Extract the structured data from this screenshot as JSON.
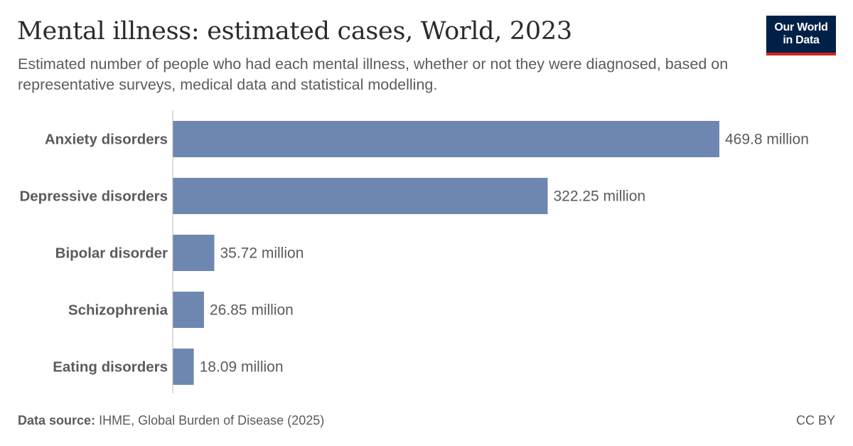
{
  "header": {
    "title": "Mental illness: estimated cases, World, 2023",
    "subtitle": "Estimated number of people who had each mental illness, whether or not they were diagnosed, based on representative surveys, medical data and statistical modelling."
  },
  "logo": {
    "line1": "Our World",
    "line2": "in Data",
    "bg_color": "#002147",
    "accent_color": "#ce261e"
  },
  "footer": {
    "source_label": "Data source:",
    "source_text": "IHME, Global Burden of Disease (2025)",
    "license": "CC BY"
  },
  "chart_data": {
    "type": "bar",
    "orientation": "horizontal",
    "categories": [
      "Anxiety disorders",
      "Depressive disorders",
      "Bipolar disorder",
      "Schizophrenia",
      "Eating disorders"
    ],
    "values": [
      469.8,
      322.25,
      35.72,
      26.85,
      18.09
    ],
    "value_labels": [
      "469.8 million",
      "322.25 million",
      "35.72 million",
      "26.85 million",
      "18.09 million"
    ],
    "bar_color": "#6d87b0",
    "grid": false,
    "legend": "none"
  }
}
